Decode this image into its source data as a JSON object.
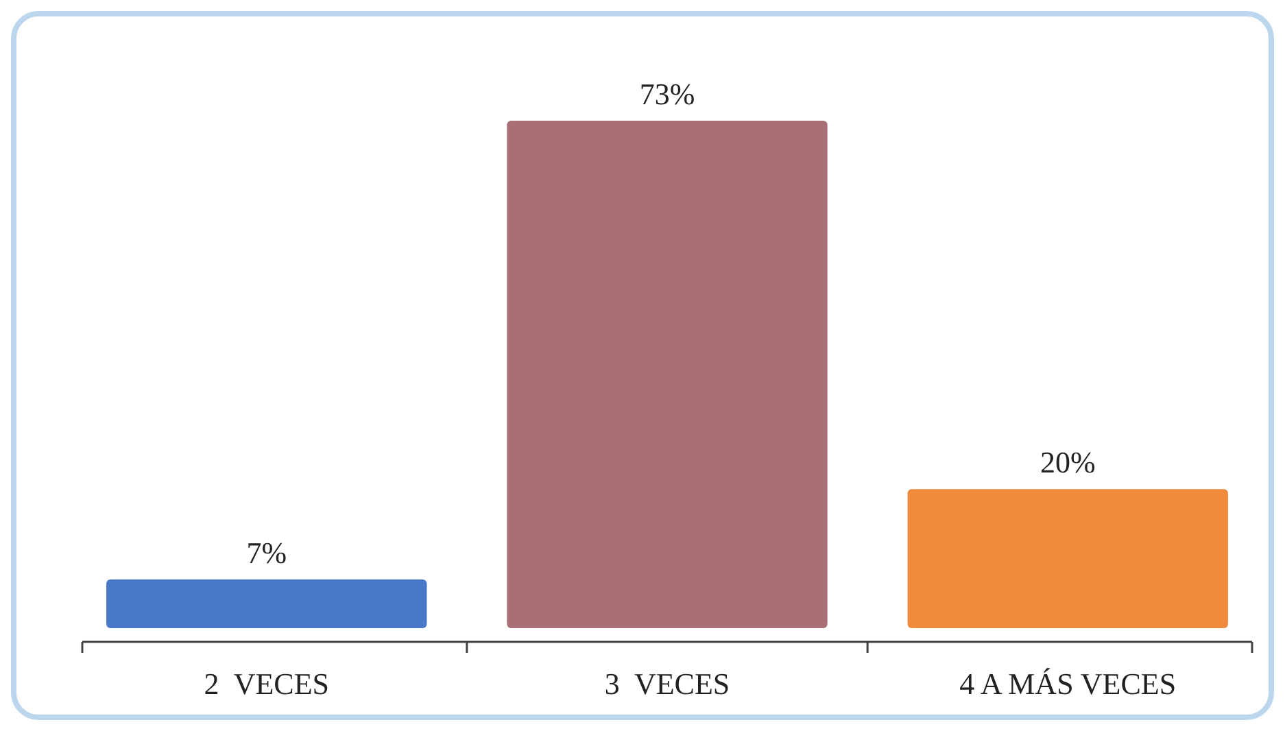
{
  "chart_data": {
    "type": "bar",
    "categories": [
      "2  VECES",
      "3  VECES",
      "4 A MÁS VECES"
    ],
    "values": [
      7,
      73,
      20
    ],
    "value_labels": [
      "7%",
      "73%",
      "20%"
    ],
    "colors": [
      "#4a78c8",
      "#a87074",
      "#f08a3c"
    ]
  }
}
